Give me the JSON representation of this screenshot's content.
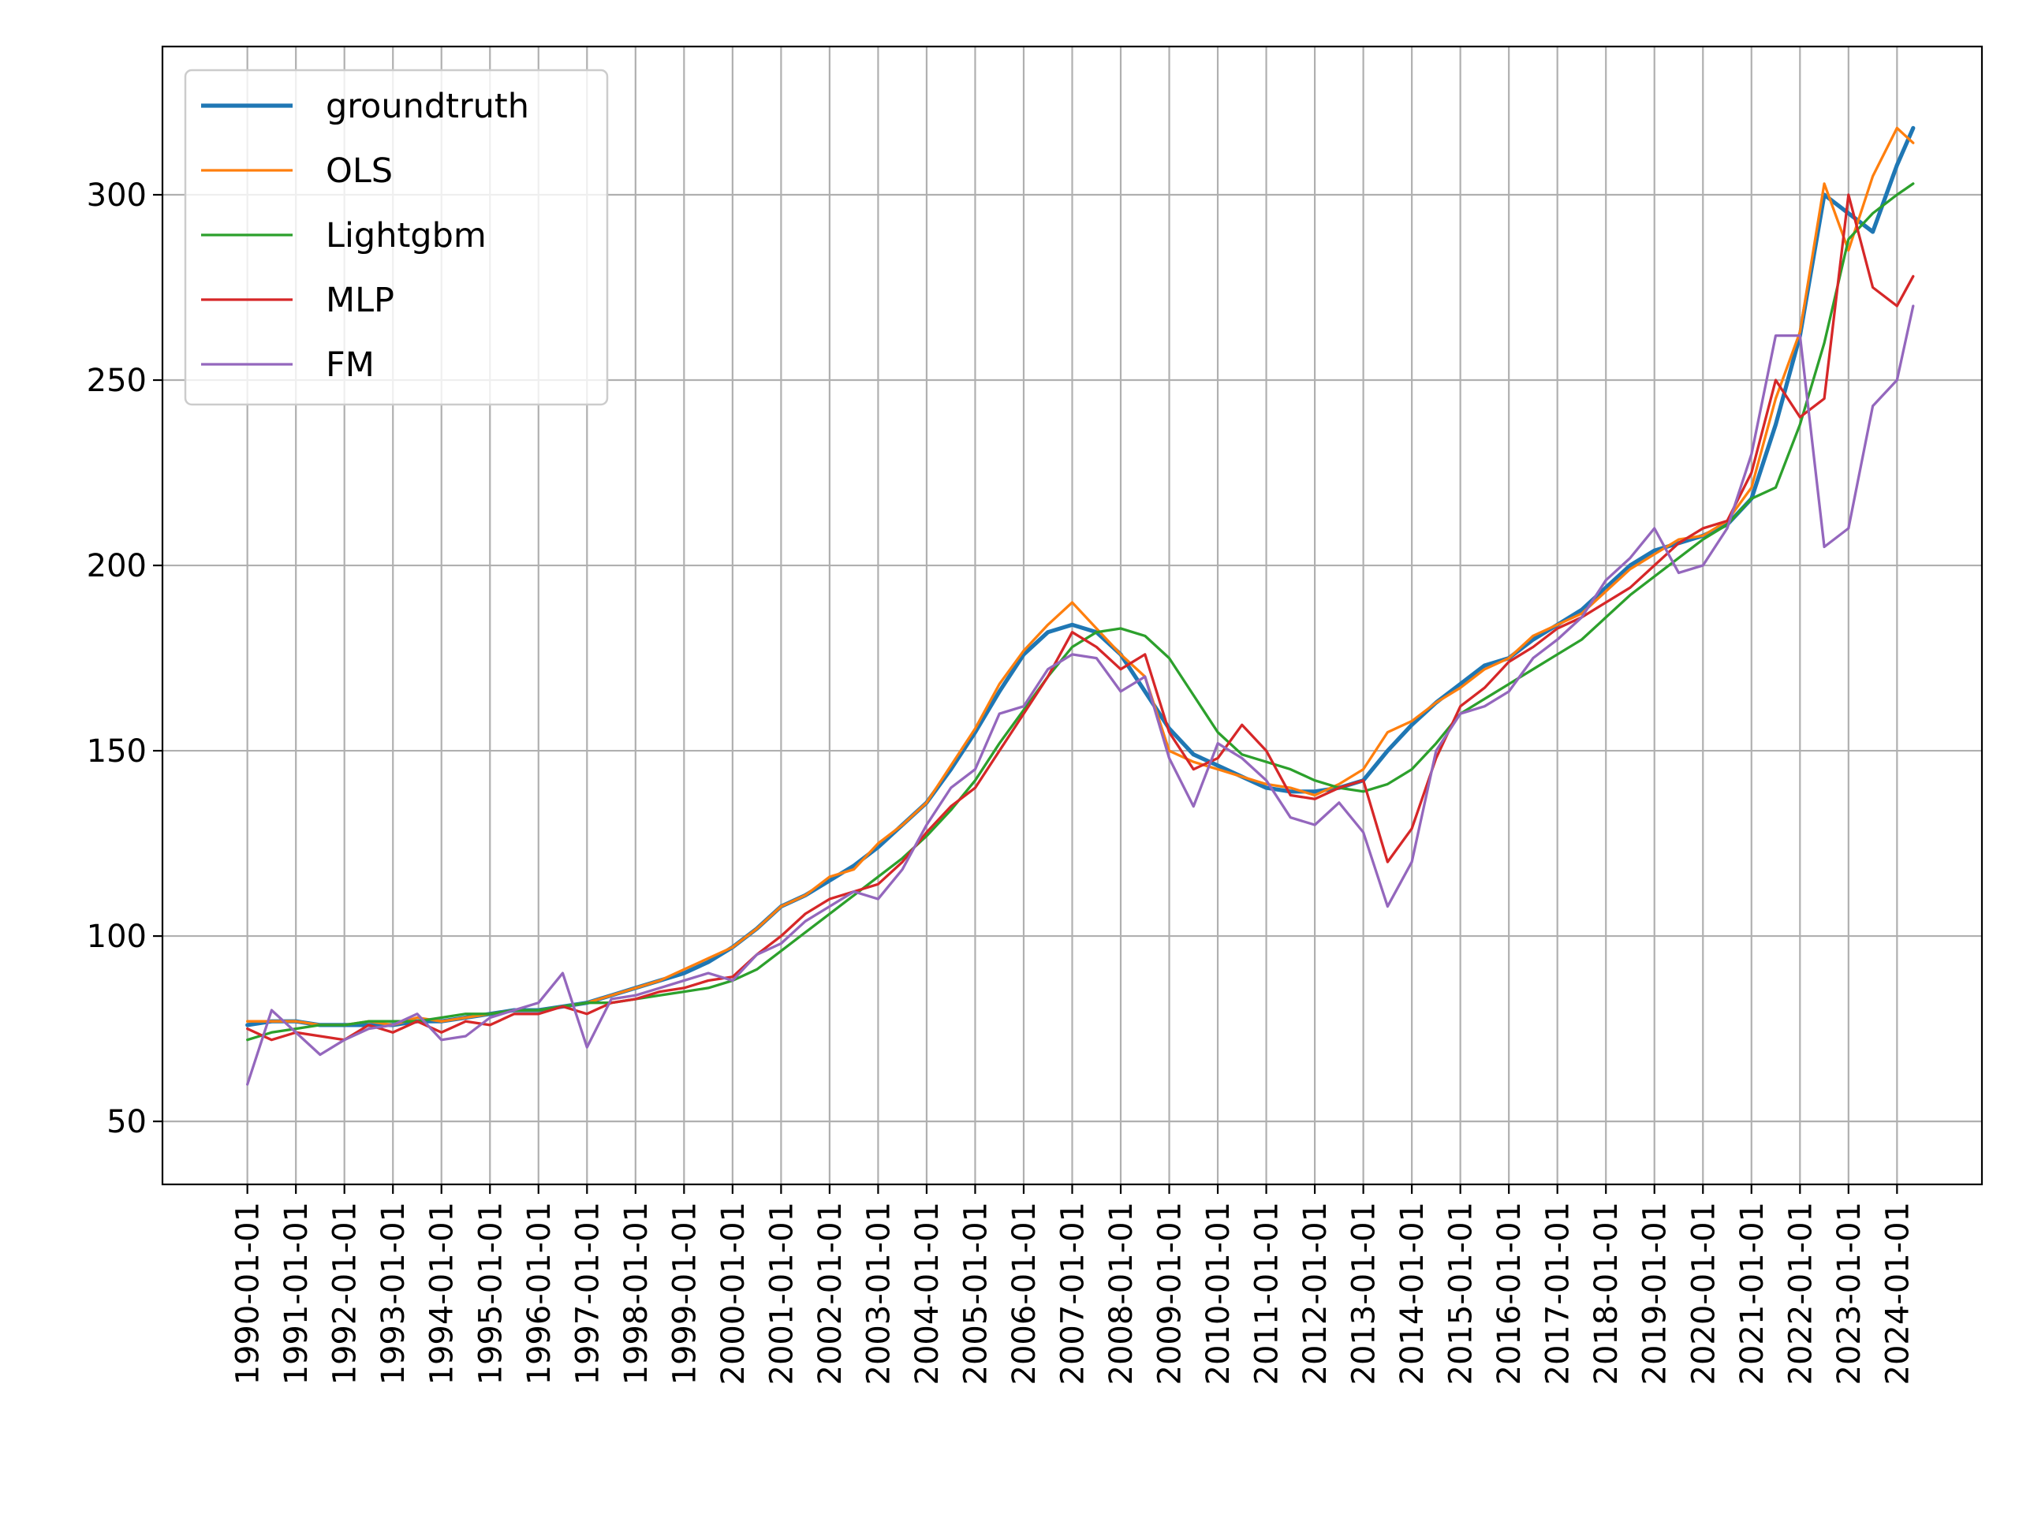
{
  "chart_data": {
    "type": "line",
    "title": "",
    "xlabel": "",
    "ylabel": "",
    "x_ticks": [
      "1990-01-01",
      "1991-01-01",
      "1992-01-01",
      "1993-01-01",
      "1994-01-01",
      "1995-01-01",
      "1996-01-01",
      "1997-01-01",
      "1998-01-01",
      "1999-01-01",
      "2000-01-01",
      "2001-01-01",
      "2002-01-01",
      "2003-01-01",
      "2004-01-01",
      "2005-01-01",
      "2006-01-01",
      "2007-01-01",
      "2008-01-01",
      "2009-01-01",
      "2010-01-01",
      "2011-01-01",
      "2012-01-01",
      "2013-01-01",
      "2014-01-01",
      "2015-01-01",
      "2016-01-01",
      "2017-01-01",
      "2018-01-01",
      "2019-01-01",
      "2020-01-01",
      "2021-01-01",
      "2022-01-01",
      "2023-01-01",
      "2024-01-01"
    ],
    "y_ticks": [
      50,
      100,
      150,
      200,
      250,
      300
    ],
    "ylim": [
      33,
      340
    ],
    "xlim": [
      "1988-04-01",
      "2025-10-01"
    ],
    "grid": true,
    "legend_position": "upper-left",
    "x": [
      "1990-01-01",
      "1990-07-01",
      "1991-01-01",
      "1991-07-01",
      "1992-01-01",
      "1992-07-01",
      "1993-01-01",
      "1993-07-01",
      "1994-01-01",
      "1994-07-01",
      "1995-01-01",
      "1995-07-01",
      "1996-01-01",
      "1996-07-01",
      "1997-01-01",
      "1997-07-01",
      "1998-01-01",
      "1998-07-01",
      "1999-01-01",
      "1999-07-01",
      "2000-01-01",
      "2000-07-01",
      "2001-01-01",
      "2001-07-01",
      "2002-01-01",
      "2002-07-01",
      "2003-01-01",
      "2003-07-01",
      "2004-01-01",
      "2004-07-01",
      "2005-01-01",
      "2005-07-01",
      "2006-01-01",
      "2006-07-01",
      "2007-01-01",
      "2007-07-01",
      "2008-01-01",
      "2008-07-01",
      "2009-01-01",
      "2009-07-01",
      "2010-01-01",
      "2010-07-01",
      "2011-01-01",
      "2011-07-01",
      "2012-01-01",
      "2012-07-01",
      "2013-01-01",
      "2013-07-01",
      "2014-01-01",
      "2014-07-01",
      "2015-01-01",
      "2015-07-01",
      "2016-01-01",
      "2016-07-01",
      "2017-01-01",
      "2017-07-01",
      "2018-01-01",
      "2018-07-01",
      "2019-01-01",
      "2019-07-01",
      "2020-01-01",
      "2020-07-01",
      "2021-01-01",
      "2021-07-01",
      "2022-01-01",
      "2022-07-01",
      "2023-01-01",
      "2023-07-01",
      "2024-01-01",
      "2024-05-01"
    ],
    "series": [
      {
        "name": "groundtruth",
        "color": "#1f77b4",
        "values": [
          76,
          77,
          77,
          76,
          76,
          76,
          76,
          77,
          77,
          78,
          79,
          80,
          80,
          81,
          82,
          84,
          86,
          88,
          90,
          93,
          97,
          102,
          108,
          111,
          115,
          119,
          124,
          130,
          136,
          145,
          155,
          166,
          176,
          182,
          184,
          182,
          176,
          166,
          156,
          149,
          146,
          143,
          140,
          139,
          139,
          140,
          142,
          150,
          157,
          163,
          168,
          173,
          175,
          180,
          184,
          188,
          194,
          200,
          204,
          206,
          208,
          211,
          218,
          238,
          262,
          300,
          295,
          290,
          308,
          318
        ],
        "width": 5.2
      },
      {
        "name": "OLS",
        "color": "#ff7f0e",
        "values": [
          77,
          77,
          77,
          76,
          76,
          77,
          76,
          78,
          77,
          78,
          79,
          80,
          80,
          81,
          82,
          84,
          86,
          88,
          91,
          94,
          97,
          102,
          108,
          111,
          116,
          118,
          125,
          130,
          136,
          146,
          156,
          168,
          177,
          184,
          190,
          183,
          176,
          170,
          150,
          147,
          145,
          143,
          141,
          140,
          138,
          141,
          145,
          155,
          158,
          163,
          167,
          172,
          175,
          181,
          184,
          187,
          193,
          199,
          203,
          207,
          208,
          212,
          221,
          245,
          263,
          303,
          285,
          305,
          318,
          314
        ],
        "width": 3.3
      },
      {
        "name": "Lightgbm",
        "color": "#2ca02c",
        "values": [
          72,
          74,
          75,
          76,
          76,
          77,
          77,
          77,
          78,
          79,
          79,
          80,
          80,
          81,
          82,
          82,
          83,
          84,
          85,
          86,
          88,
          91,
          96,
          101,
          106,
          111,
          116,
          121,
          127,
          134,
          142,
          152,
          161,
          170,
          178,
          182,
          183,
          181,
          175,
          165,
          155,
          149,
          147,
          145,
          142,
          140,
          139,
          141,
          145,
          152,
          160,
          164,
          168,
          172,
          176,
          180,
          186,
          192,
          197,
          202,
          207,
          211,
          218,
          221,
          238,
          260,
          288,
          295,
          300,
          303
        ],
        "width": 3.3
      },
      {
        "name": "MLP",
        "color": "#d62728",
        "values": [
          75,
          72,
          74,
          73,
          72,
          76,
          74,
          77,
          74,
          77,
          76,
          79,
          79,
          81,
          79,
          82,
          83,
          85,
          86,
          88,
          89,
          95,
          100,
          106,
          110,
          112,
          114,
          120,
          128,
          135,
          140,
          150,
          160,
          170,
          182,
          178,
          172,
          176,
          155,
          145,
          148,
          157,
          150,
          138,
          137,
          140,
          142,
          120,
          129,
          148,
          162,
          167,
          174,
          178,
          183,
          186,
          190,
          194,
          200,
          206,
          210,
          212,
          225,
          250,
          240,
          245,
          300,
          275,
          270,
          278
        ],
        "width": 3.3
      },
      {
        "name": "FM",
        "color": "#9467bd",
        "values": [
          60,
          80,
          74,
          68,
          72,
          75,
          76,
          79,
          72,
          73,
          78,
          80,
          82,
          90,
          70,
          83,
          84,
          86,
          88,
          90,
          88,
          95,
          98,
          104,
          108,
          112,
          110,
          118,
          130,
          140,
          145,
          160,
          162,
          172,
          176,
          175,
          166,
          170,
          148,
          135,
          152,
          148,
          142,
          132,
          130,
          136,
          128,
          108,
          120,
          150,
          160,
          162,
          166,
          175,
          180,
          186,
          196,
          202,
          210,
          198,
          200,
          210,
          230,
          262,
          262,
          205,
          210,
          243,
          250,
          270
        ],
        "width": 3.3
      }
    ]
  },
  "legend": {
    "items": [
      {
        "label": "groundtruth",
        "color": "#1f77b4"
      },
      {
        "label": "OLS",
        "color": "#ff7f0e"
      },
      {
        "label": "Lightgbm",
        "color": "#2ca02c"
      },
      {
        "label": "MLP",
        "color": "#d62728"
      },
      {
        "label": "FM",
        "color": "#9467bd"
      }
    ]
  },
  "style": {
    "grid_color": "#b0b0b0",
    "axis_color": "#000000",
    "background": "#ffffff"
  }
}
